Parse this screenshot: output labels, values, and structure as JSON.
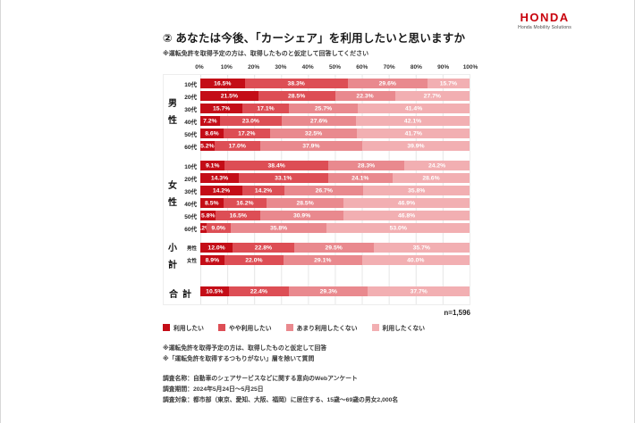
{
  "logo": {
    "brand": "HONDA",
    "subtitle": "Honda Mobility Solutions"
  },
  "title": "② あなたは今後、「カーシェア」を利用したいと思いますか",
  "subtitle": "※運転免許を取得予定の方は、取得したものと仮定して回答してください",
  "chart_data": {
    "type": "bar",
    "orientation": "horizontal-stacked",
    "xlim": [
      0,
      100
    ],
    "x_ticks": [
      "0%",
      "10%",
      "20%",
      "30%",
      "40%",
      "50%",
      "60%",
      "70%",
      "80%",
      "90%",
      "100%"
    ],
    "grid": true,
    "legend_position": "bottom",
    "legend": [
      {
        "label": "利用したい",
        "color": "#c40d17"
      },
      {
        "label": "やや利用したい",
        "color": "#dd4e55"
      },
      {
        "label": "あまり利用したくない",
        "color": "#e9898e"
      },
      {
        "label": "利用したくない",
        "color": "#f2afb2"
      }
    ],
    "groups": [
      {
        "group": "男性",
        "rows": [
          {
            "label": "10代",
            "values": [
              16.5,
              38.3,
              29.6,
              15.7
            ]
          },
          {
            "label": "20代",
            "values": [
              21.5,
              28.5,
              22.3,
              27.7
            ]
          },
          {
            "label": "30代",
            "values": [
              15.7,
              17.1,
              25.7,
              41.4
            ]
          },
          {
            "label": "40代",
            "values": [
              7.2,
              23.0,
              27.6,
              42.1
            ]
          },
          {
            "label": "50代",
            "values": [
              8.6,
              17.2,
              32.5,
              41.7
            ]
          },
          {
            "label": "60代",
            "values": [
              5.2,
              17.0,
              37.9,
              39.9
            ]
          }
        ]
      },
      {
        "group": "女性",
        "rows": [
          {
            "label": "10代",
            "values": [
              9.1,
              38.4,
              28.3,
              24.2
            ]
          },
          {
            "label": "20代",
            "values": [
              14.3,
              33.1,
              24.1,
              28.6
            ]
          },
          {
            "label": "30代",
            "values": [
              14.2,
              14.2,
              26.7,
              35.8
            ]
          },
          {
            "label": "40代",
            "values": [
              8.5,
              16.2,
              28.5,
              46.9
            ]
          },
          {
            "label": "50代",
            "values": [
              5.8,
              16.5,
              30.9,
              46.8
            ]
          },
          {
            "label": "60代",
            "values": [
              2.2,
              9.0,
              35.8,
              53.0
            ]
          }
        ]
      },
      {
        "group": "小計",
        "rows": [
          {
            "label": "男性",
            "values": [
              12.0,
              22.8,
              29.5,
              35.7
            ]
          },
          {
            "label": "女性",
            "values": [
              8.9,
              22.0,
              29.1,
              40.0
            ]
          }
        ]
      },
      {
        "group": "合計",
        "rows": [
          {
            "label": "",
            "values": [
              10.5,
              22.4,
              29.3,
              37.7
            ]
          }
        ]
      }
    ],
    "sample_note": "n=1,596"
  },
  "footnotes": [
    "※運転免許を取得予定の方は、取得したものと仮定して回答",
    "※「運転免許を取得するつもりがない」層を除いて質問"
  ],
  "survey_info": [
    "調査名称：自動車のシェアサービスなどに関する意向のWebアンケート",
    "調査期間：2024年5月24日～5月25日",
    "調査対象：都市部（東京、愛知、大阪、福岡）に居住する、15歳～69歳の男女2,000名"
  ]
}
